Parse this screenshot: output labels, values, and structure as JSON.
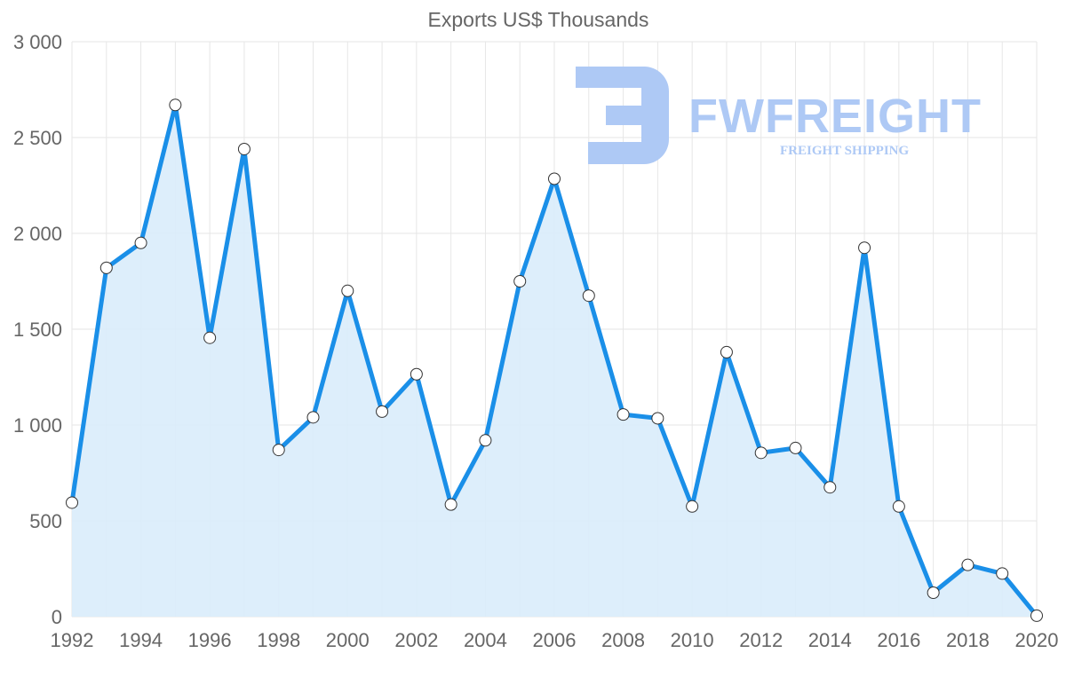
{
  "chart_data": {
    "type": "area",
    "title": "Exports US$ Thousands",
    "xlabel": "",
    "ylabel": "",
    "x": [
      1992,
      1993,
      1994,
      1995,
      1996,
      1997,
      1998,
      1999,
      2000,
      2001,
      2002,
      2003,
      2004,
      2005,
      2006,
      2007,
      2008,
      2009,
      2010,
      2011,
      2012,
      2013,
      2014,
      2015,
      2016,
      2017,
      2018,
      2019,
      2020
    ],
    "series": [
      {
        "name": "Exports",
        "values": [
          595,
          1820,
          1950,
          2670,
          1455,
          2440,
          870,
          1040,
          1700,
          1070,
          1265,
          585,
          920,
          1750,
          2285,
          1675,
          1055,
          1035,
          575,
          1380,
          855,
          880,
          675,
          1925,
          575,
          125,
          270,
          225,
          5
        ]
      }
    ],
    "x_tick_labels": [
      "1992",
      "1994",
      "1996",
      "1998",
      "2000",
      "2002",
      "2004",
      "2006",
      "2008",
      "2010",
      "2012",
      "2014",
      "2016",
      "2018",
      "2020"
    ],
    "y_tick_labels": [
      "0",
      "500",
      "1 000",
      "1 500",
      "2 000",
      "2 500",
      "3 000"
    ],
    "ylim": [
      0,
      3000
    ],
    "y_ticks": [
      0,
      500,
      1000,
      1500,
      2000,
      2500,
      3000
    ],
    "grid": true,
    "colors": {
      "line": "#1a8fe8",
      "fill": "#d9ecfb",
      "grid": "#e6e6e6",
      "point_fill": "#ffffff",
      "point_stroke": "#333333"
    }
  },
  "watermark": {
    "brand": "FWFREIGHT",
    "tagline": "FREIGHT SHIPPING",
    "color": "#aec9f5"
  }
}
